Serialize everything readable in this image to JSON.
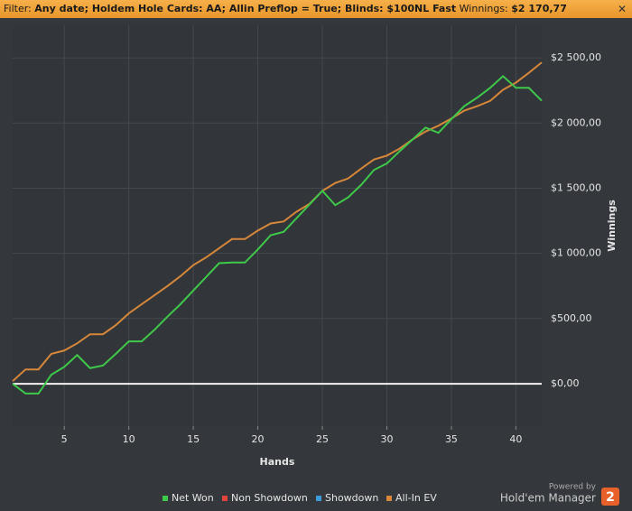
{
  "filter": {
    "label": "Filter:",
    "value": "Any date; Holdem Hole Cards: AA; Allin Preflop = True; Blinds: $100NL Fast",
    "winnings_label": "Winnings:",
    "winnings_value": "$2 170,77"
  },
  "chart_data": {
    "type": "line",
    "x_label": "Hands",
    "y_label": "Winnings",
    "x": [
      1,
      2,
      3,
      4,
      5,
      6,
      7,
      8,
      9,
      10,
      11,
      12,
      13,
      14,
      15,
      16,
      17,
      18,
      19,
      20,
      21,
      22,
      23,
      24,
      25,
      26,
      27,
      28,
      29,
      30,
      31,
      32,
      33,
      34,
      35,
      36,
      37,
      38,
      39,
      40,
      41,
      42
    ],
    "series": [
      {
        "name": "Net Won",
        "color": "#3ec94a",
        "values": [
          0,
          -75,
          -75,
          70,
          130,
          220,
          120,
          140,
          230,
          325,
          325,
          415,
          515,
          610,
          715,
          820,
          925,
          930,
          930,
          1030,
          1140,
          1165,
          1270,
          1375,
          1480,
          1370,
          1430,
          1525,
          1640,
          1690,
          1785,
          1875,
          1965,
          1925,
          2030,
          2130,
          2195,
          2270,
          2360,
          2270,
          2270,
          2171
        ]
      },
      {
        "name": "Non Showdown",
        "color": "#e0453c"
      },
      {
        "name": "Showdown",
        "color": "#3b9ad9"
      },
      {
        "name": "All-In EV",
        "color": "#d6873a",
        "values": [
          20,
          110,
          110,
          230,
          255,
          310,
          380,
          380,
          450,
          540,
          610,
          680,
          750,
          825,
          910,
          970,
          1040,
          1110,
          1110,
          1175,
          1230,
          1245,
          1320,
          1380,
          1480,
          1540,
          1575,
          1650,
          1720,
          1750,
          1805,
          1875,
          1935,
          1980,
          2035,
          2095,
          2130,
          2170,
          2255,
          2310,
          2385,
          2465
        ]
      }
    ],
    "xlim": [
      1,
      42
    ],
    "xticks": [
      5,
      10,
      15,
      20,
      25,
      30,
      35,
      40
    ],
    "ylim": [
      -325,
      2750
    ],
    "yticks": [
      {
        "value": 0,
        "label": "$0,00"
      },
      {
        "value": 500,
        "label": "$500,00"
      },
      {
        "value": 1000,
        "label": "$1 000,00"
      },
      {
        "value": 1500,
        "label": "$1 500,00"
      },
      {
        "value": 2000,
        "label": "$2 000,00"
      },
      {
        "value": 2500,
        "label": "$2 500,00"
      }
    ],
    "grid": true
  },
  "footer": {
    "powered": "Powered by",
    "brand": "Hold'em Manager",
    "logo": "2"
  }
}
